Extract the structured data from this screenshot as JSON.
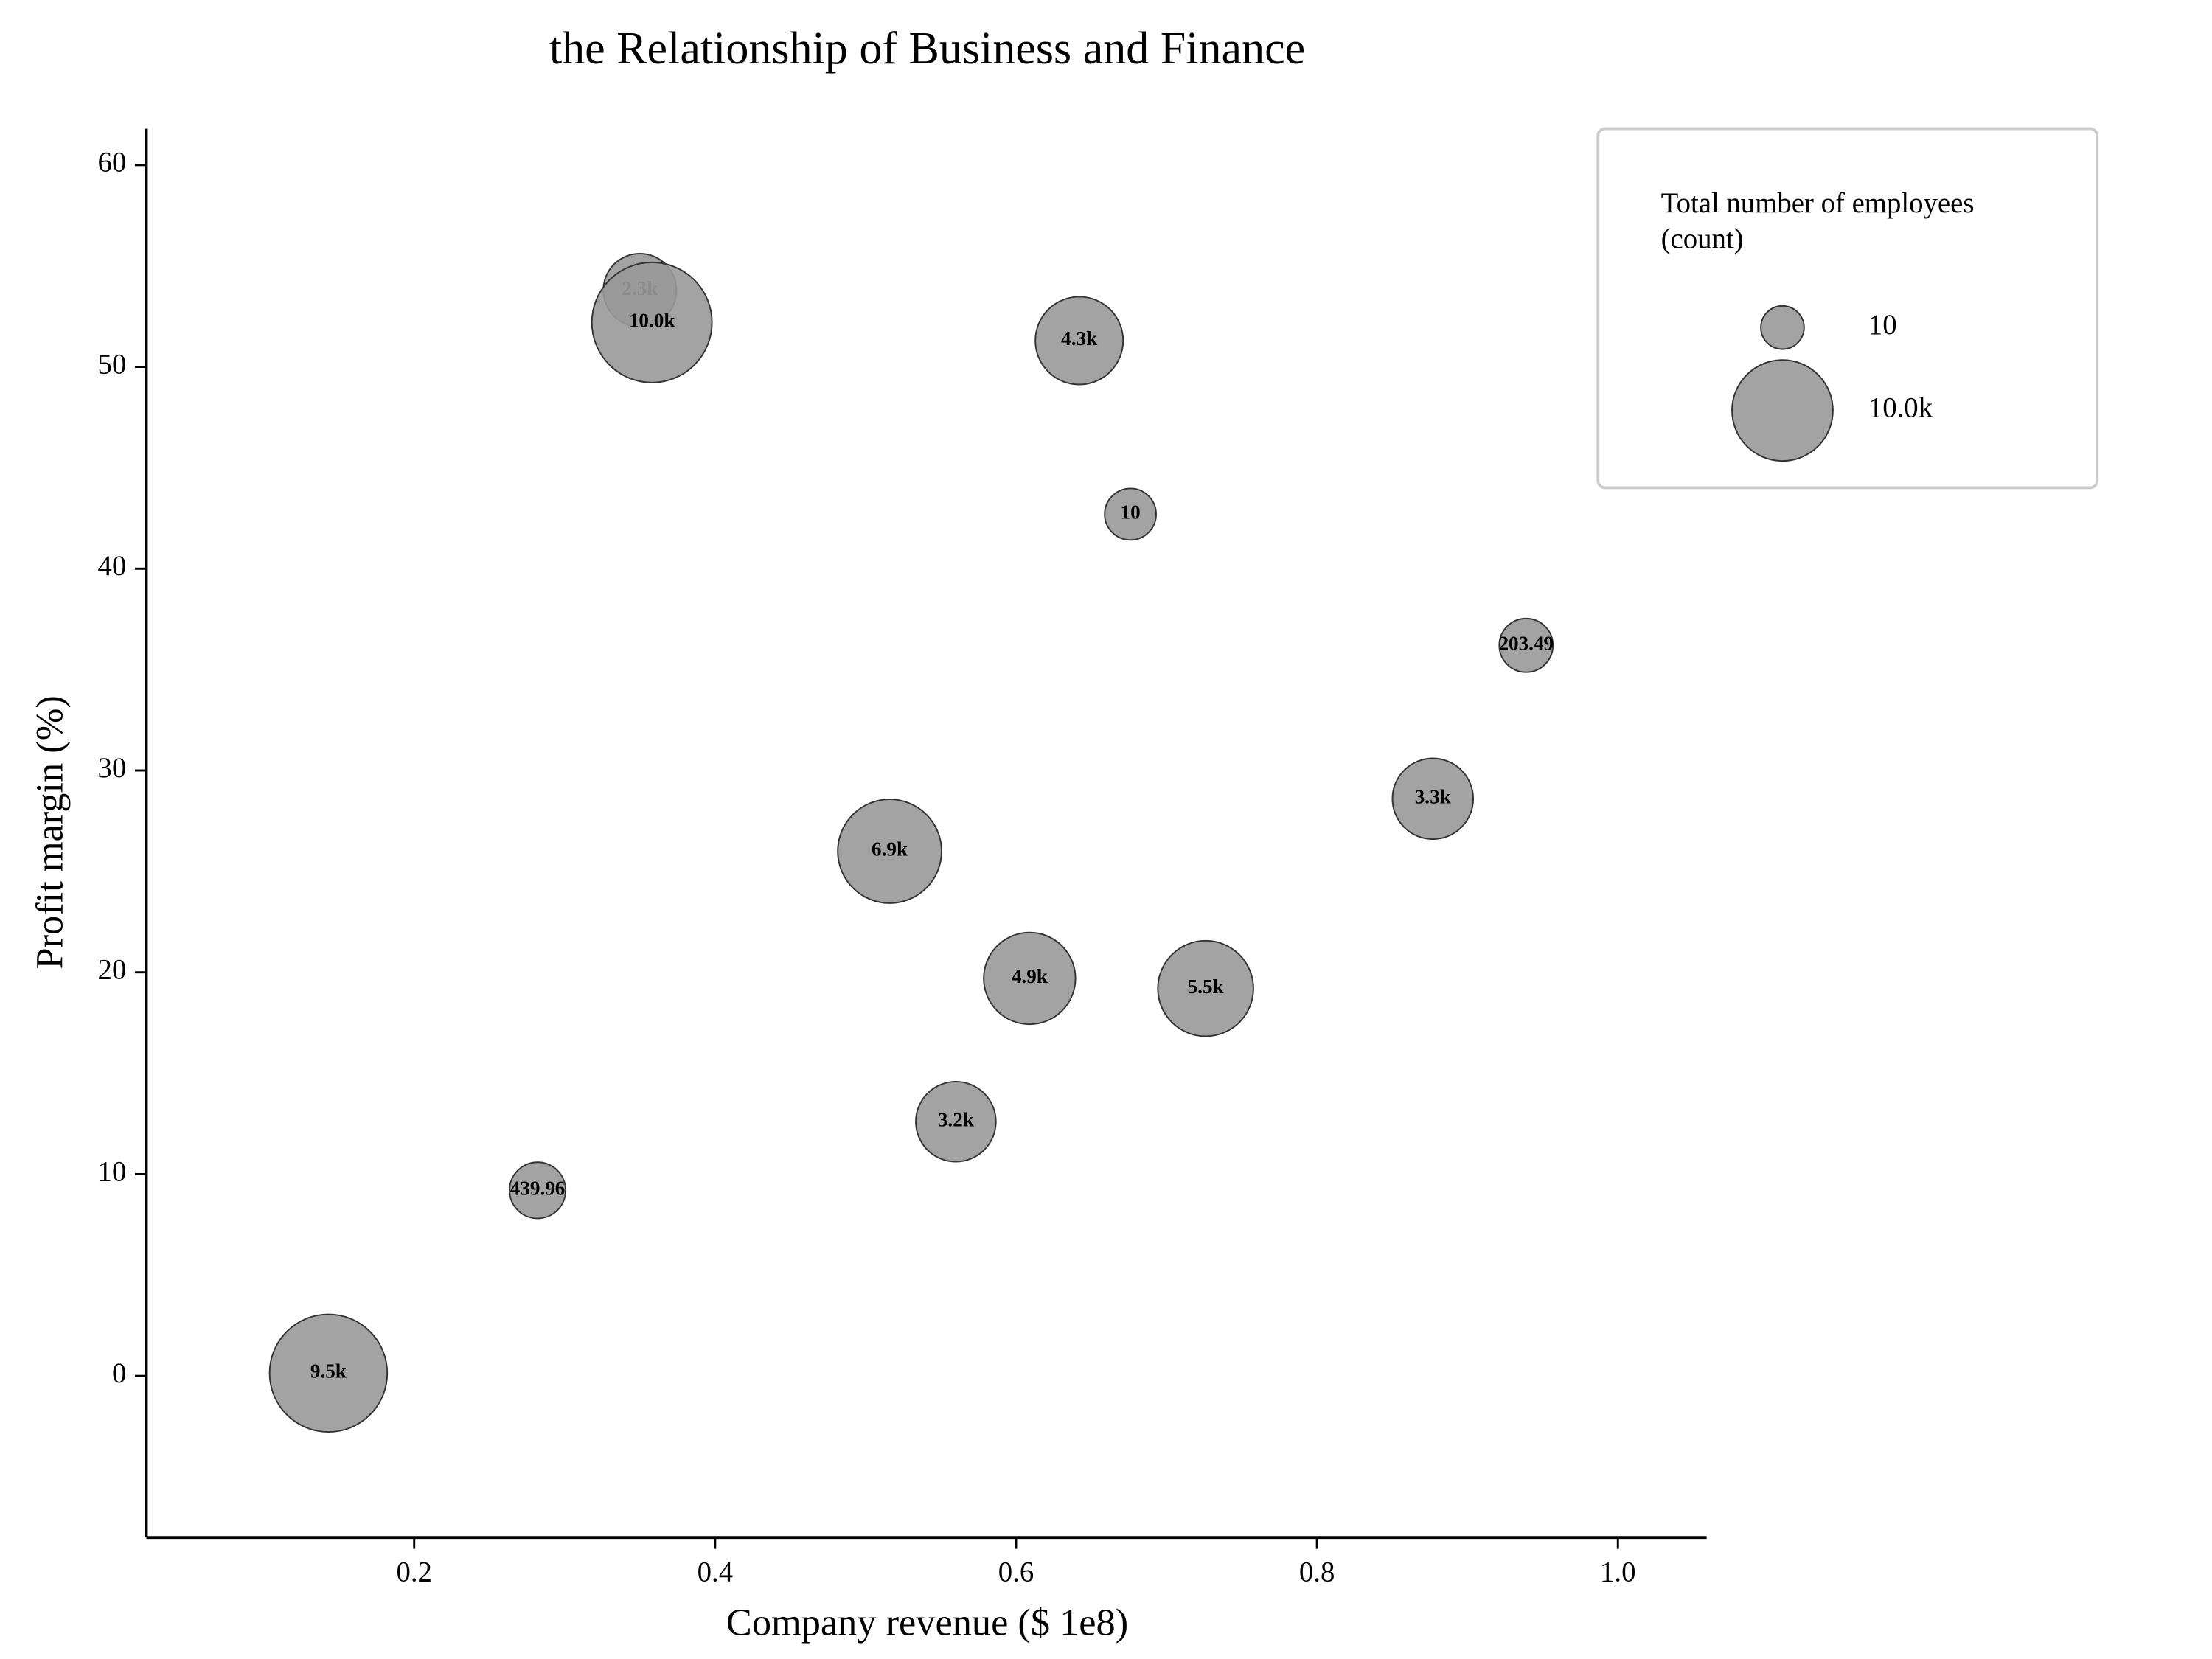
{
  "chart_data": {
    "type": "scatter",
    "title": "the Relationship of Business and Finance",
    "x_label": "Company revenue ($ 1e8)",
    "y_label": "Profit margin (%)",
    "x": [
      0.143,
      0.282,
      0.35,
      0.358,
      0.516,
      0.56,
      0.609,
      0.642,
      0.676,
      0.726,
      0.877,
      0.939
    ],
    "y": [
      0.14,
      9.2,
      53.8,
      52.2,
      26.0,
      12.6,
      19.7,
      51.3,
      42.7,
      19.2,
      28.6,
      36.2
    ],
    "sizes": [
      9500,
      439.96,
      2300,
      10000,
      6900,
      3200,
      4900,
      4300,
      10,
      5500,
      3300,
      203.49
    ],
    "value_labels": [
      "9.5k",
      "439.96",
      "2.3k",
      "10.0k",
      "6.9k",
      "3.2k",
      "4.9k",
      "4.3k",
      "10",
      "5.5k",
      "3.3k",
      "203.49"
    ],
    "color": "#999999",
    "edge_color": "#333333",
    "xlim": [
      0.022,
      1.059
    ],
    "ylim": [
      -8.0,
      61.8
    ],
    "xticks": [
      0.2,
      0.4,
      0.6,
      0.8,
      {
        "value": 1,
        "label": "1.0"
      }
    ],
    "yticks": [
      0,
      10,
      20,
      30,
      40,
      50,
      60
    ],
    "grid": false,
    "legend_title": [
      "Total number of employees",
      "(count)"
    ],
    "legend_position": "upper right",
    "size_legend": [
      {
        "value": 10,
        "label": "10"
      },
      {
        "value": 10000,
        "label": "10.0k"
      }
    ]
  }
}
